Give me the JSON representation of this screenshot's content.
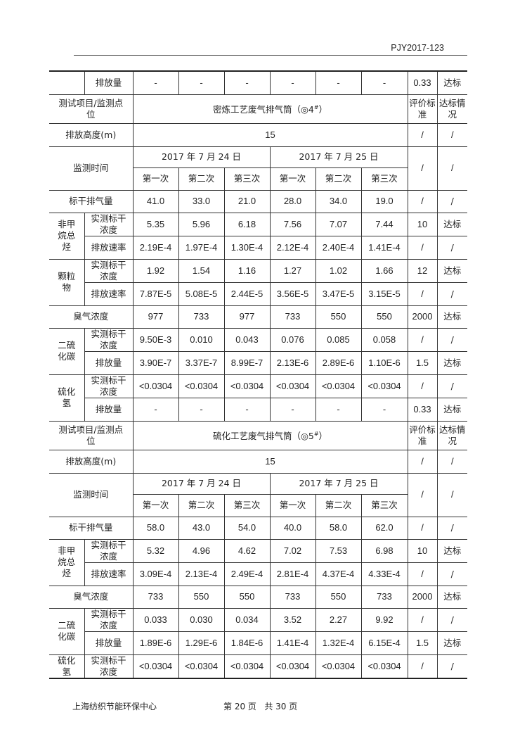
{
  "header": {
    "doc_number": "PJY2017-123"
  },
  "top_row": {
    "label": "排放量",
    "values": [
      "-",
      "-",
      "-",
      "-",
      "-",
      "-"
    ],
    "standard": "0.33",
    "status": "达标"
  },
  "sections": [
    {
      "header": {
        "label": "测试项目/监测点位",
        "location": "密炼工艺废气排气筒（◎4",
        "location_sup": "#",
        "location_end": "）",
        "standard_label": "评价标准",
        "status_label": "达标情况"
      },
      "height": {
        "label": "排放高度(m)",
        "value": "15",
        "standard": "/",
        "status": "/"
      },
      "time": {
        "label": "监测时间",
        "dates": [
          "2017 年 7 月 24 日",
          "2017 年 7 月 25 日"
        ],
        "runs": [
          "第一次",
          "第二次",
          "第三次",
          "第一次",
          "第二次",
          "第三次"
        ],
        "standard": "/",
        "status": "/"
      },
      "items": [
        {
          "type": "single",
          "label": "标干排气量",
          "values": [
            "41.0",
            "33.0",
            "21.0",
            "28.0",
            "34.0",
            "19.0"
          ],
          "standard": "/",
          "status": "/"
        },
        {
          "type": "group",
          "label": "非甲烷总烃",
          "rows": [
            {
              "label": "实测标干浓度",
              "values": [
                "5.35",
                "5.96",
                "6.18",
                "7.56",
                "7.07",
                "7.44"
              ],
              "standard": "10",
              "status": "达标"
            },
            {
              "label": "排放速率",
              "values": [
                "2.19E-4",
                "1.97E-4",
                "1.30E-4",
                "2.12E-4",
                "2.40E-4",
                "1.41E-4"
              ],
              "standard": "/",
              "status": "/"
            }
          ]
        },
        {
          "type": "group",
          "label": "颗粒物",
          "rows": [
            {
              "label": "实测标干浓度",
              "values": [
                "1.92",
                "1.54",
                "1.16",
                "1.27",
                "1.02",
                "1.66"
              ],
              "standard": "12",
              "status": "达标"
            },
            {
              "label": "排放速率",
              "values": [
                "7.87E-5",
                "5.08E-5",
                "2.44E-5",
                "3.56E-5",
                "3.47E-5",
                "3.15E-5"
              ],
              "standard": "/",
              "status": "/"
            }
          ]
        },
        {
          "type": "single",
          "label": "臭气浓度",
          "values": [
            "977",
            "733",
            "977",
            "733",
            "550",
            "550"
          ],
          "standard": "2000",
          "status": "达标"
        },
        {
          "type": "group",
          "label": "二硫化碳",
          "rows": [
            {
              "label": "实测标干浓度",
              "values": [
                "9.50E-3",
                "0.010",
                "0.043",
                "0.076",
                "0.085",
                "0.058"
              ],
              "standard": "/",
              "status": "/"
            },
            {
              "label": "排放量",
              "values": [
                "3.90E-7",
                "3.37E-7",
                "8.99E-7",
                "2.13E-6",
                "2.89E-6",
                "1.10E-6"
              ],
              "standard": "1.5",
              "status": "达标"
            }
          ]
        },
        {
          "type": "group",
          "label": "硫化氢",
          "rows": [
            {
              "label": "实测标干浓度",
              "values": [
                "<0.0304",
                "<0.0304",
                "<0.0304",
                "<0.0304",
                "<0.0304",
                "<0.0304"
              ],
              "standard": "/",
              "status": "/"
            },
            {
              "label": "排放量",
              "values": [
                "-",
                "-",
                "-",
                "-",
                "-",
                "-"
              ],
              "standard": "0.33",
              "status": "达标"
            }
          ]
        }
      ]
    },
    {
      "header": {
        "label": "测试项目/监测点位",
        "location": "硫化工艺废气排气筒（◎5",
        "location_sup": "#",
        "location_end": "）",
        "standard_label": "评价标准",
        "status_label": "达标情况"
      },
      "height": {
        "label": "排放高度(m)",
        "value": "15",
        "standard": "/",
        "status": "/"
      },
      "time": {
        "label": "监测时间",
        "dates": [
          "2017 年 7 月 24 日",
          "2017 年 7 月 25 日"
        ],
        "runs": [
          "第一次",
          "第二次",
          "第三次",
          "第一次",
          "第二次",
          "第三次"
        ],
        "standard": "/",
        "status": "/"
      },
      "items": [
        {
          "type": "single",
          "label": "标干排气量",
          "values": [
            "58.0",
            "43.0",
            "54.0",
            "40.0",
            "58.0",
            "62.0"
          ],
          "standard": "/",
          "status": "/"
        },
        {
          "type": "group",
          "label": "非甲烷总烃",
          "rows": [
            {
              "label": "实测标干浓度",
              "values": [
                "5.32",
                "4.96",
                "4.62",
                "7.02",
                "7.53",
                "6.98"
              ],
              "standard": "10",
              "status": "达标"
            },
            {
              "label": "排放速率",
              "values": [
                "3.09E-4",
                "2.13E-4",
                "2.49E-4",
                "2.81E-4",
                "4.37E-4",
                "4.33E-4"
              ],
              "standard": "/",
              "status": "/"
            }
          ]
        },
        {
          "type": "single",
          "label": "臭气浓度",
          "values": [
            "733",
            "550",
            "550",
            "733",
            "550",
            "733"
          ],
          "standard": "2000",
          "status": "达标"
        },
        {
          "type": "group",
          "label": "二硫化碳",
          "rows": [
            {
              "label": "实测标干浓度",
              "values": [
                "0.033",
                "0.030",
                "0.034",
                "3.52",
                "2.27",
                "9.92"
              ],
              "standard": "/",
              "status": "/"
            },
            {
              "label": "排放量",
              "values": [
                "1.89E-6",
                "1.29E-6",
                "1.84E-6",
                "1.41E-4",
                "1.32E-4",
                "6.15E-4"
              ],
              "standard": "1.5",
              "status": "达标"
            }
          ]
        },
        {
          "type": "group",
          "label": "硫化氢",
          "rows": [
            {
              "label": "实测标干浓度",
              "values": [
                "<0.0304",
                "<0.0304",
                "<0.0304",
                "<0.0304",
                "<0.0304",
                "<0.0304"
              ],
              "standard": "/",
              "status": "/"
            }
          ]
        }
      ]
    }
  ],
  "footer": {
    "organization": "上海纺织节能环保中心",
    "page_info": "第 20 页   共 30 页"
  }
}
